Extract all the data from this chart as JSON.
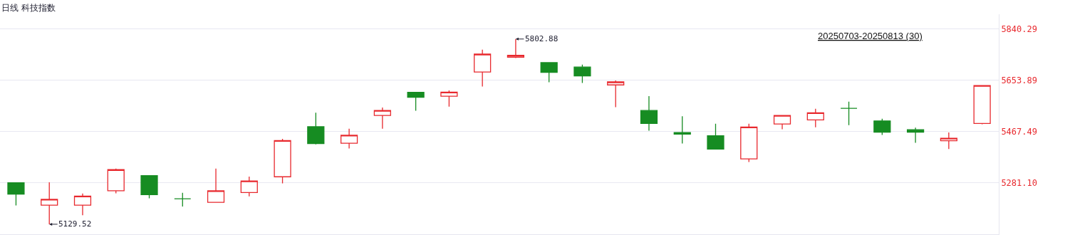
{
  "chart_data": {
    "type": "candlestick",
    "title": "日线 科技指数",
    "annotations": [
      "5802.88",
      "5129.52",
      "20250703-20250813 (30)"
    ],
    "categories": [
      null,
      null,
      null,
      null,
      null,
      null,
      null,
      null,
      null,
      null,
      null,
      null,
      null,
      null,
      null,
      null,
      null,
      null,
      null,
      null,
      null,
      null,
      null,
      null,
      null,
      null,
      null,
      null,
      null,
      null
    ],
    "ohlc": [
      [
        5280,
        5282,
        5198,
        5239
      ],
      [
        5199,
        5282,
        5129.52,
        5220
      ],
      [
        5199,
        5241,
        5162,
        5232
      ],
      [
        5251,
        5332,
        5242,
        5328
      ],
      [
        5306,
        5306,
        5224,
        5237
      ],
      [
        5222,
        5244,
        5194,
        5222
      ],
      [
        5209,
        5332,
        5209,
        5251
      ],
      [
        5245,
        5303,
        5231,
        5287
      ],
      [
        5302,
        5440,
        5278,
        5434
      ],
      [
        5484,
        5535,
        5420,
        5423
      ],
      [
        5424,
        5477,
        5405,
        5453
      ],
      [
        5525,
        5554,
        5477,
        5543
      ],
      [
        5609,
        5609,
        5542,
        5591
      ],
      [
        5595,
        5616,
        5557,
        5610
      ],
      [
        5683,
        5764,
        5630,
        5748
      ],
      [
        5737,
        5802.88,
        5734,
        5744
      ],
      [
        5717,
        5717,
        5646,
        5682
      ],
      [
        5701,
        5710,
        5643,
        5669
      ],
      [
        5636,
        5652,
        5555,
        5647
      ],
      [
        5543,
        5595,
        5470,
        5496
      ],
      [
        5463,
        5522,
        5423,
        5457
      ],
      [
        5451,
        5495,
        5403,
        5403
      ],
      [
        5367,
        5495,
        5356,
        5483
      ],
      [
        5494,
        5525,
        5475,
        5525
      ],
      [
        5509,
        5549,
        5482,
        5535
      ],
      [
        5551,
        5575,
        5490,
        5551
      ],
      [
        5505,
        5513,
        5454,
        5464
      ],
      [
        5473,
        5481,
        5426,
        5464
      ],
      [
        5433,
        5463,
        5403,
        5442
      ],
      [
        5496,
        5634,
        5493,
        5634
      ]
    ],
    "colors": [
      "#168c22",
      "#e8292e",
      "#e8292e",
      "#e8292e",
      "#168c22",
      "#168c22",
      "#e8292e",
      "#e8292e",
      "#e8292e",
      "#168c22",
      "#e8292e",
      "#e8292e",
      "#168c22",
      "#e8292e",
      "#e8292e",
      "#e8292e",
      "#168c22",
      "#168c22",
      "#e8292e",
      "#168c22",
      "#168c22",
      "#168c22",
      "#e8292e",
      "#e8292e",
      "#e8292e",
      "#168c22",
      "#168c22",
      "#168c22",
      "#e8292e",
      "#e8292e"
    ],
    "ylim": [
      5093,
      5893
    ],
    "yticks": [
      5840.29,
      5653.89,
      5467.49,
      {
        "value": 5281.1,
        "label": "5281.10"
      }
    ],
    "grid": "y",
    "tick_labels": "y"
  }
}
